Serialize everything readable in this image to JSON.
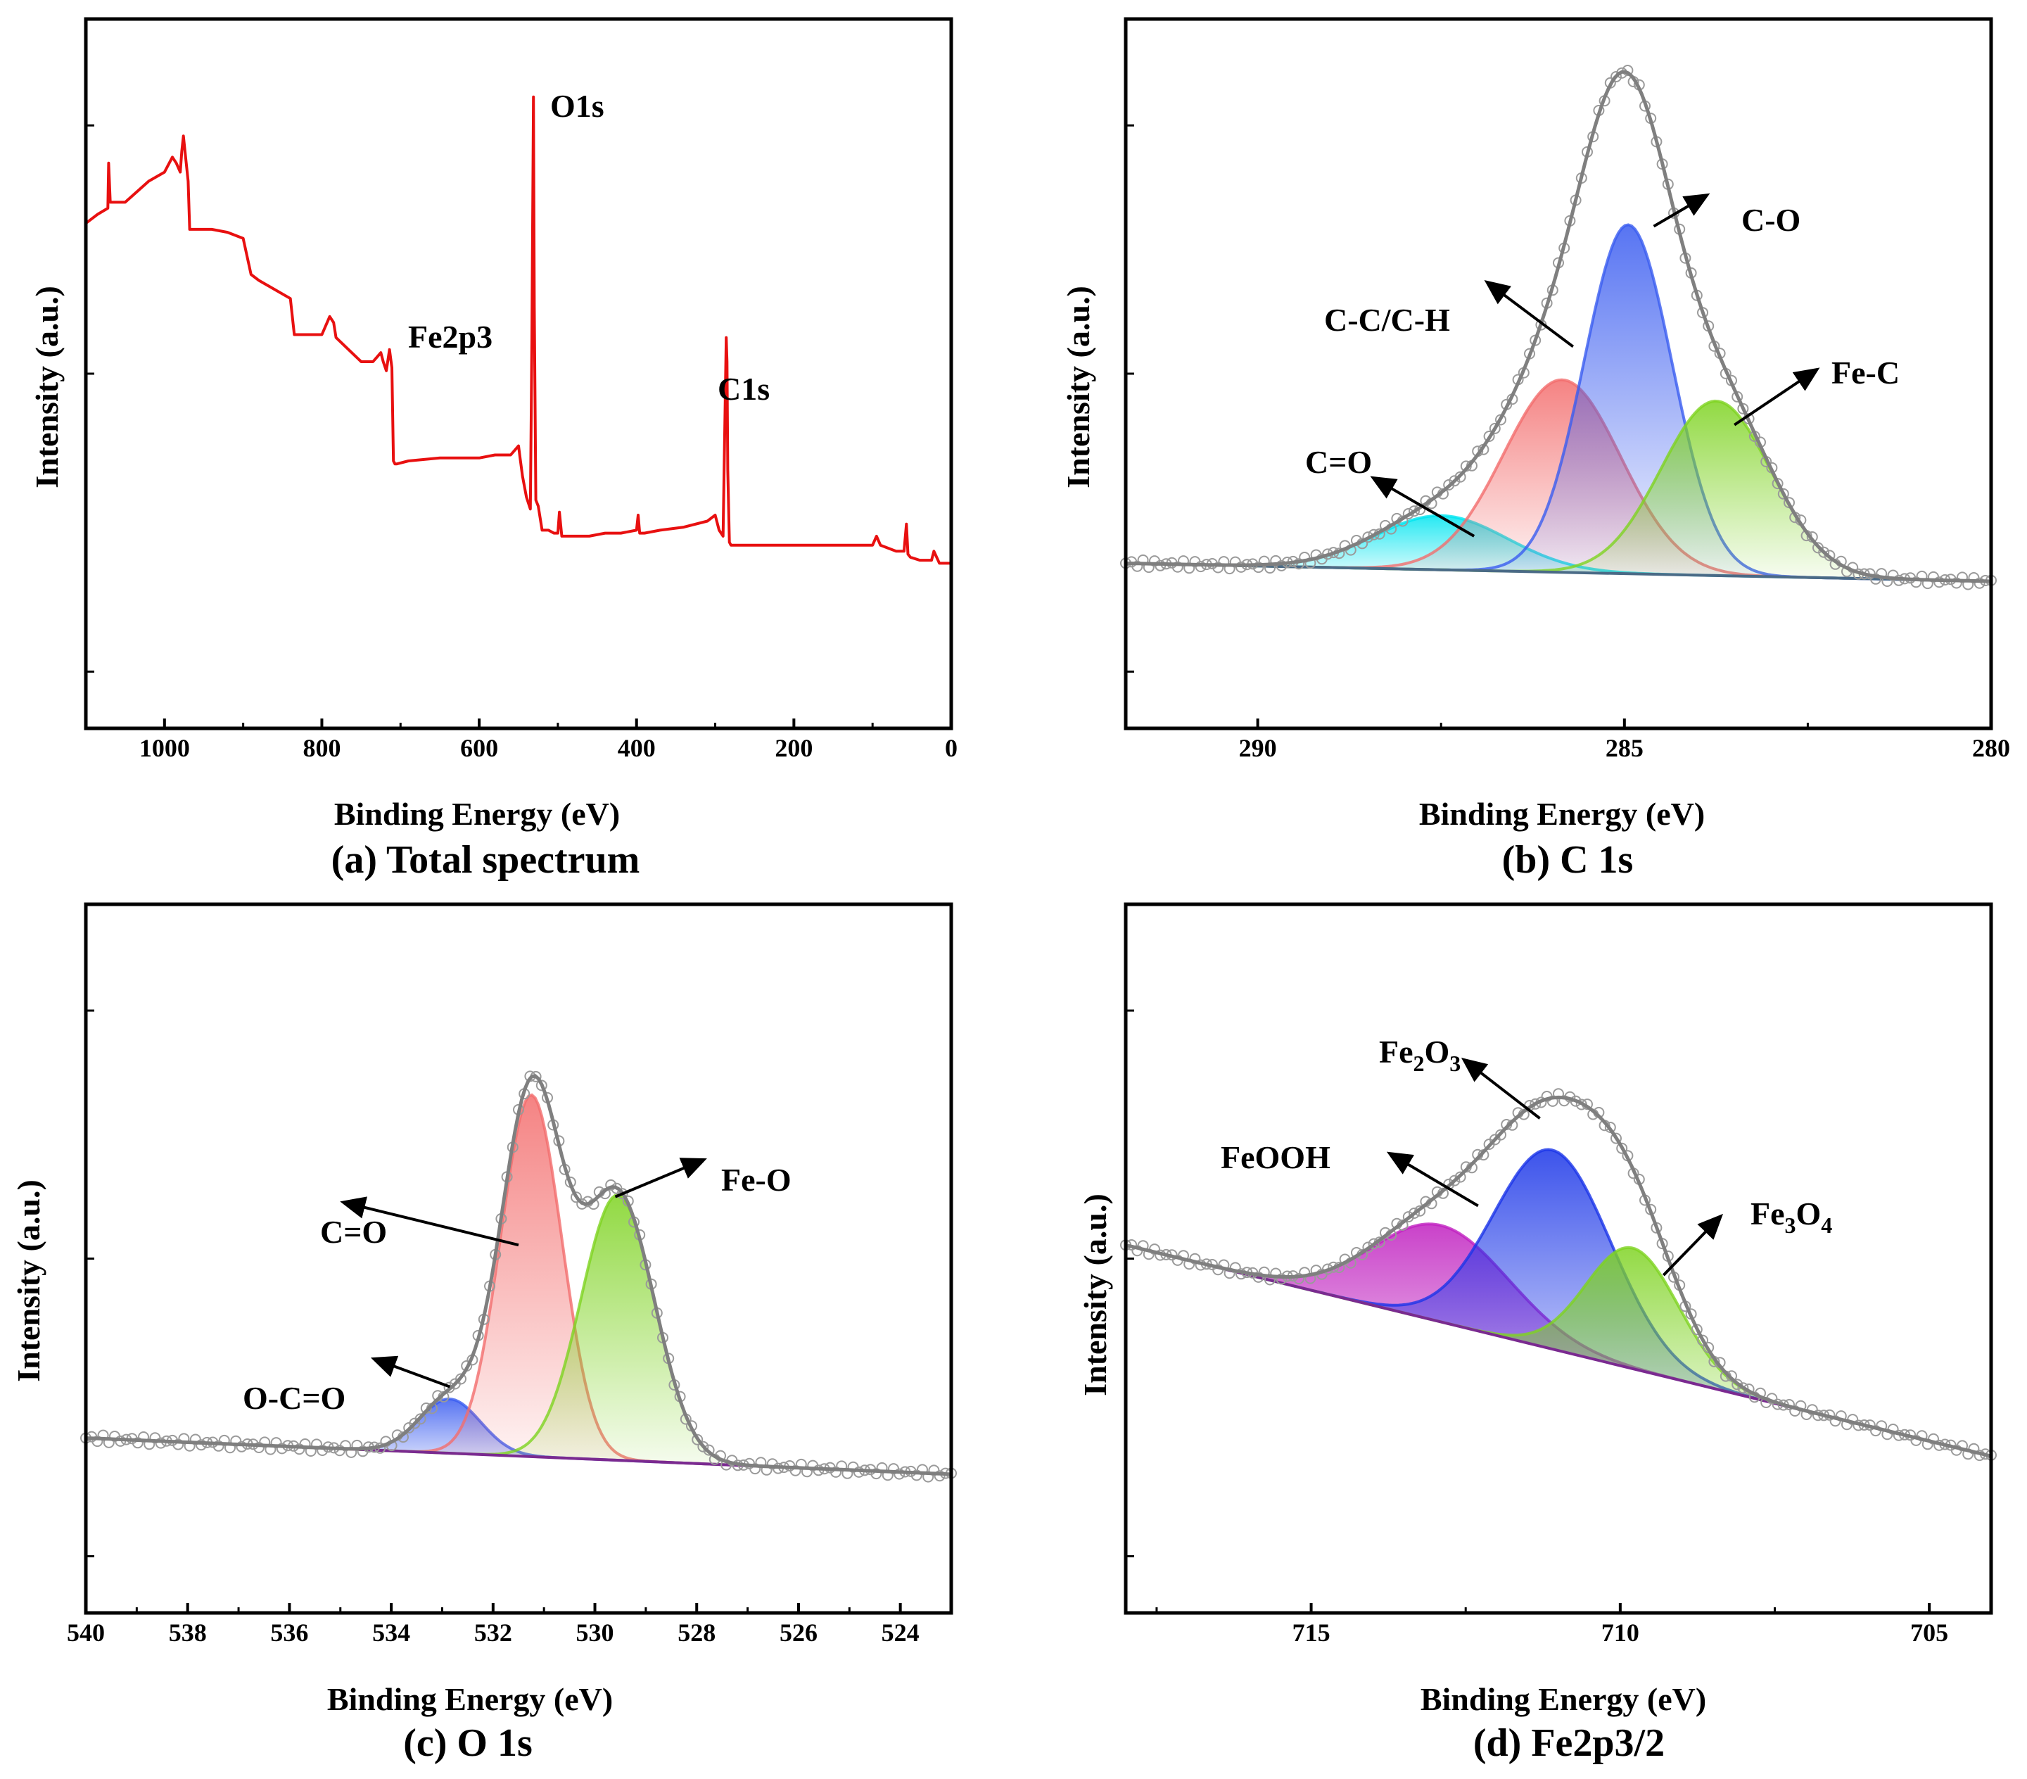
{
  "chart_data": [
    {
      "id": "a",
      "type": "line",
      "title": "(a)  Total spectrum",
      "xlabel": "Binding Energy (eV)",
      "ylabel": "Intensity (a.u.)",
      "xlim": [
        1100,
        0
      ],
      "ylim": [
        0,
        100
      ],
      "xticks": [
        1000,
        800,
        600,
        400,
        200,
        0
      ],
      "xtick_labels": [
        "1000",
        "800",
        "600",
        "400",
        "200",
        "0"
      ],
      "series": [
        {
          "name": "Total spectrum",
          "color": "#e81010",
          "x": [
            1100,
            1085,
            1072,
            1071,
            1069,
            1050,
            1020,
            1000,
            990,
            985,
            980,
            978,
            976,
            974,
            970,
            968,
            960,
            940,
            920,
            900,
            890,
            880,
            860,
            840,
            835,
            820,
            800,
            790,
            785,
            782,
            770,
            750,
            735,
            725,
            722,
            718,
            714,
            711,
            709,
            707,
            705,
            690,
            650,
            600,
            580,
            560,
            550,
            548,
            545,
            540,
            535,
            533,
            531,
            530,
            528,
            525,
            520,
            512,
            505,
            500,
            498,
            495,
            490,
            480,
            460,
            440,
            420,
            400,
            398,
            396,
            390,
            370,
            340,
            310,
            300,
            295,
            290,
            286,
            285,
            284,
            282,
            280,
            270,
            250,
            200,
            150,
            120,
            100,
            95,
            90,
            70,
            60,
            57,
            55,
            52,
            40,
            30,
            25,
            22,
            15,
            5,
            0
          ],
          "y": [
            74,
            75.5,
            76.5,
            84,
            77.5,
            77.5,
            81,
            82.5,
            85,
            84,
            82.5,
            86,
            88.5,
            86,
            81,
            73,
            73,
            73,
            72.5,
            71.5,
            65.5,
            64.5,
            63,
            61.5,
            55.5,
            55.5,
            55.5,
            58.5,
            57.5,
            55,
            53.5,
            51,
            51,
            52.5,
            51,
            49.5,
            53,
            50,
            34.5,
            34,
            34,
            34.5,
            35,
            35,
            35.5,
            35.5,
            37,
            35,
            32,
            28.5,
            26.5,
            55,
            95,
            60,
            28,
            27,
            23,
            23,
            22.5,
            22.5,
            26,
            22,
            22,
            22,
            22,
            22.5,
            22.5,
            23,
            25.5,
            22.5,
            22.5,
            23,
            23.5,
            24.5,
            25.5,
            23,
            22,
            55,
            51,
            33,
            21,
            20.5,
            20.5,
            20.5,
            20.5,
            20.5,
            20.5,
            20.5,
            22,
            20.5,
            19.5,
            19.5,
            24,
            19,
            18.5,
            18,
            18,
            18,
            19.5,
            17.5,
            17.5,
            17.5
          ]
        }
      ],
      "annotations": [
        {
          "text": "O1s",
          "x": 510,
          "y": 96.5
        },
        {
          "text": "Fe2p3",
          "x": 680,
          "y": 64.5
        },
        {
          "text": "C1s",
          "x": 255,
          "y": 56.5
        }
      ]
    },
    {
      "id": "b",
      "type": "area",
      "title": "(b) C 1s",
      "xlabel": "Binding Energy (eV)",
      "ylabel": "Intensity (a.u.)",
      "xlim": [
        291.8,
        280
      ],
      "ylim": [
        0,
        100
      ],
      "xticks": [
        290,
        285,
        280
      ],
      "xtick_labels": [
        "290",
        "285",
        "280"
      ],
      "baseline": {
        "x": [
          291.8,
          280
        ],
        "y": [
          17.5,
          14.5
        ]
      },
      "components": [
        {
          "name": "C=O",
          "center": 287.5,
          "height": 9,
          "width": 0.9,
          "color": "#00e5f0"
        },
        {
          "name": "C-C/C-H",
          "center": 285.85,
          "height": 32,
          "width": 0.8,
          "color": "#f36d6d"
        },
        {
          "name": "C-O",
          "center": 284.95,
          "height": 58,
          "width": 0.6,
          "color": "#3a5cf0"
        },
        {
          "name": "Fe-C",
          "center": 283.75,
          "height": 29,
          "width": 0.75,
          "color": "#7ed321"
        }
      ],
      "envelope_color": "#7f7f7f",
      "annotations": [
        {
          "text": "C=O",
          "x": 288.9,
          "y": 37.5
        },
        {
          "text": "C-C/C-H",
          "x": 287.1,
          "y": 57
        },
        {
          "text": "C-O",
          "x": 283.7,
          "y": 72
        },
        {
          "text": "Fe-C",
          "x": 282.3,
          "y": 51
        }
      ]
    },
    {
      "id": "c",
      "type": "area",
      "title": "(c) O 1s",
      "xlabel": "Binding Energy (eV)",
      "ylabel": "Intensity (a.u.)",
      "xlim": [
        540,
        523
      ],
      "ylim": [
        0,
        100
      ],
      "xticks": [
        540,
        538,
        536,
        534,
        532,
        530,
        528,
        526,
        524
      ],
      "xtick_labels": [
        "540",
        "538",
        "536",
        "534",
        "532",
        "530",
        "528",
        "526",
        "524"
      ],
      "baseline": {
        "x": [
          540,
          523
        ],
        "y": [
          18.5,
          12.5
        ]
      },
      "components": [
        {
          "name": "O-C=O",
          "center": 532.85,
          "height": 9,
          "width": 0.6,
          "color": "#3a5cf0"
        },
        {
          "name": "C=O",
          "center": 531.25,
          "height": 60,
          "width": 0.6,
          "color": "#f36d6d"
        },
        {
          "name": "Fe-O",
          "center": 529.55,
          "height": 44,
          "width": 0.72,
          "color": "#7ed321"
        }
      ],
      "envelope_color": "#7f7f7f",
      "annotations": [
        {
          "text": "O-C=O",
          "x": 535.2,
          "y": 31
        },
        {
          "text": "C=O",
          "x": 536.4,
          "y": 55
        },
        {
          "text": "Fe-O",
          "x": 527.8,
          "y": 62
        }
      ]
    },
    {
      "id": "d",
      "type": "area",
      "title": "(d) Fe2p3/2",
      "xlabel": "Binding Energy (eV)",
      "ylabel": "Intensity (a.u.)",
      "xlim": [
        718,
        704
      ],
      "ylim": [
        0,
        100
      ],
      "xticks": [
        715,
        710,
        705
      ],
      "xtick_labels": [
        "715",
        "710",
        "705"
      ],
      "baseline": {
        "x": [
          718,
          704
        ],
        "y": [
          50.5,
          15.5
        ]
      },
      "components": [
        {
          "name": "FeOOH",
          "center": 712.9,
          "height": 16,
          "width": 1.1,
          "color": "#c020c0"
        },
        {
          "name": "Fe2O3",
          "center": 711.1,
          "height": 33,
          "width": 0.95,
          "color": "#1a35e8"
        },
        {
          "name": "Fe3O4",
          "center": 709.8,
          "height": 20,
          "width": 0.75,
          "color": "#7ed321"
        }
      ],
      "envelope_color": "#7f7f7f",
      "annotations": [
        {
          "text": "FeOOH",
          "x": 714.6,
          "y": 64
        },
        {
          "text": "Fe2O3",
          "x": 712.9,
          "y": 79
        },
        {
          "text": "Fe3O4",
          "x": 707.9,
          "y": 58
        }
      ]
    }
  ],
  "rich_labels": {
    "fe2o3": {
      "a": "Fe",
      "b": "2",
      "c": "O",
      "d": "3"
    },
    "fe3o4": {
      "a": "Fe",
      "b": "3",
      "c": "O",
      "d": "4"
    }
  }
}
